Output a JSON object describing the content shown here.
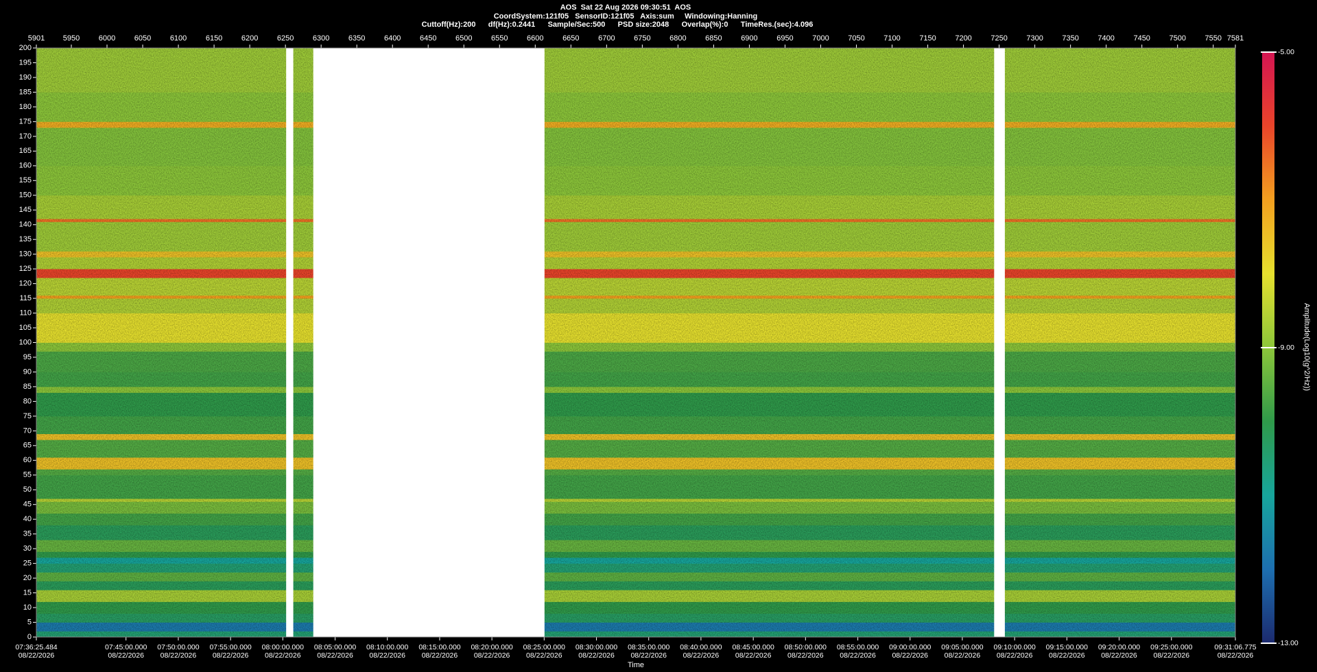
{
  "chart_data": {
    "type": "spectrogram",
    "title": "AOS  Sat 22 Aug 2026 09:30:51  AOS",
    "subtitle": "CoordSystem:121f05   SensorID:121f05   Axis:sum     Windowing:Hanning",
    "info": "Cuttoff(Hz):200      df(Hz):0.2441      Sample/Sec:500      PSD size:2048      Overlap(%):0      TimeRes.(sec):4.096",
    "xlabel": "Time",
    "colorbar_label": "Amplitude(Log10(g^2/Hz))",
    "xlim": [
      5901,
      7581
    ],
    "x2ticks": [
      5901,
      5950,
      6000,
      6050,
      6100,
      6150,
      6200,
      6250,
      6300,
      6350,
      6400,
      6450,
      6500,
      6550,
      6600,
      6650,
      6700,
      6750,
      6800,
      6850,
      6900,
      6950,
      7000,
      7050,
      7100,
      7150,
      7200,
      7250,
      7300,
      7350,
      7400,
      7450,
      7500,
      7550,
      7581
    ],
    "xticks": [
      {
        "value": 5901,
        "label": "07:36:25.484"
      },
      {
        "value": 6026.6,
        "label": "07:45:00.000"
      },
      {
        "value": 6099.9,
        "label": "07:50:00.000"
      },
      {
        "value": 6173.1,
        "label": "07:55:00.000"
      },
      {
        "value": 6246.3,
        "label": "08:00:00.000"
      },
      {
        "value": 6319.6,
        "label": "08:05:00.000"
      },
      {
        "value": 6392.8,
        "label": "08:10:00.000"
      },
      {
        "value": 6466.1,
        "label": "08:15:00.000"
      },
      {
        "value": 6539.3,
        "label": "08:20:00.000"
      },
      {
        "value": 6612.5,
        "label": "08:25:00.000"
      },
      {
        "value": 6685.8,
        "label": "08:30:00.000"
      },
      {
        "value": 6759.0,
        "label": "08:35:00.000"
      },
      {
        "value": 6832.2,
        "label": "08:40:00.000"
      },
      {
        "value": 6905.5,
        "label": "08:45:00.000"
      },
      {
        "value": 6978.7,
        "label": "08:50:00.000"
      },
      {
        "value": 7052.0,
        "label": "08:55:00.000"
      },
      {
        "value": 7125.2,
        "label": "09:00:00.000"
      },
      {
        "value": 7198.4,
        "label": "09:05:00.000"
      },
      {
        "value": 7271.7,
        "label": "09:10:00.000"
      },
      {
        "value": 7344.9,
        "label": "09:15:00.000"
      },
      {
        "value": 7418.1,
        "label": "09:20:00.000"
      },
      {
        "value": 7491.4,
        "label": "09:25:00.000"
      },
      {
        "value": 7581,
        "label": "09:31:06.775"
      }
    ],
    "xtick_date": "08/22/2026",
    "ylim": [
      0,
      200
    ],
    "yticks": [
      0,
      5,
      10,
      15,
      20,
      25,
      30,
      35,
      40,
      45,
      50,
      55,
      60,
      65,
      70,
      75,
      80,
      85,
      90,
      95,
      100,
      105,
      110,
      115,
      120,
      125,
      130,
      135,
      140,
      145,
      150,
      155,
      160,
      165,
      170,
      175,
      180,
      185,
      190,
      195,
      200
    ],
    "clim": [
      -13,
      -5
    ],
    "cticks": [
      {
        "value": -5,
        "label": "-5.00"
      },
      {
        "value": -9,
        "label": "-9.00"
      },
      {
        "value": -13,
        "label": "-13.00"
      }
    ],
    "colormap": [
      "#1c2a6e",
      "#1d6fb0",
      "#17a59c",
      "#2f9a4a",
      "#8cc63a",
      "#e6e02e",
      "#f3a01f",
      "#e9442a",
      "#d41552"
    ],
    "gaps": [
      [
        6251,
        6261
      ],
      [
        6289,
        6613
      ],
      [
        7243,
        7258
      ]
    ],
    "bands": [
      {
        "freq": [
          0,
          2
        ],
        "value": -10.5
      },
      {
        "freq": [
          2,
          5
        ],
        "value": -11.8
      },
      {
        "freq": [
          5,
          8
        ],
        "value": -10.3
      },
      {
        "freq": [
          8,
          12
        ],
        "value": -10.0
      },
      {
        "freq": [
          12,
          16
        ],
        "value": -8.7
      },
      {
        "freq": [
          16,
          19
        ],
        "value": -10.2
      },
      {
        "freq": [
          19,
          22
        ],
        "value": -9.5
      },
      {
        "freq": [
          22,
          25
        ],
        "value": -10.5
      },
      {
        "freq": [
          25,
          27
        ],
        "value": -11.0
      },
      {
        "freq": [
          27,
          29
        ],
        "value": -10.0
      },
      {
        "freq": [
          29,
          33
        ],
        "value": -9.4
      },
      {
        "freq": [
          33,
          38
        ],
        "value": -10.2
      },
      {
        "freq": [
          38,
          42
        ],
        "value": -9.8
      },
      {
        "freq": [
          42,
          46
        ],
        "value": -9.2
      },
      {
        "freq": [
          46,
          47
        ],
        "value": -8.5
      },
      {
        "freq": [
          47,
          55
        ],
        "value": -9.8
      },
      {
        "freq": [
          55,
          57
        ],
        "value": -9.6
      },
      {
        "freq": [
          57,
          61
        ],
        "value": -7.5
      },
      {
        "freq": [
          61,
          67
        ],
        "value": -9.6
      },
      {
        "freq": [
          67,
          69
        ],
        "value": -7.5
      },
      {
        "freq": [
          69,
          75
        ],
        "value": -9.8
      },
      {
        "freq": [
          75,
          83
        ],
        "value": -10.0
      },
      {
        "freq": [
          83,
          85
        ],
        "value": -9.0
      },
      {
        "freq": [
          85,
          90
        ],
        "value": -9.8
      },
      {
        "freq": [
          90,
          97
        ],
        "value": -9.7
      },
      {
        "freq": [
          97,
          100
        ],
        "value": -9.0
      },
      {
        "freq": [
          100,
          110
        ],
        "value": -8.0
      },
      {
        "freq": [
          110,
          115
        ],
        "value": -8.6
      },
      {
        "freq": [
          115,
          116
        ],
        "value": -7.0
      },
      {
        "freq": [
          116,
          122
        ],
        "value": -8.5
      },
      {
        "freq": [
          122,
          125
        ],
        "value": -6.0
      },
      {
        "freq": [
          125,
          129
        ],
        "value": -8.6
      },
      {
        "freq": [
          129,
          131
        ],
        "value": -7.5
      },
      {
        "freq": [
          131,
          141
        ],
        "value": -8.8
      },
      {
        "freq": [
          141,
          142
        ],
        "value": -6.5
      },
      {
        "freq": [
          142,
          150
        ],
        "value": -8.7
      },
      {
        "freq": [
          150,
          160
        ],
        "value": -9.0
      },
      {
        "freq": [
          160,
          173
        ],
        "value": -9.1
      },
      {
        "freq": [
          173,
          175
        ],
        "value": -7.2
      },
      {
        "freq": [
          175,
          185
        ],
        "value": -9.0
      },
      {
        "freq": [
          185,
          200
        ],
        "value": -8.8
      }
    ]
  }
}
